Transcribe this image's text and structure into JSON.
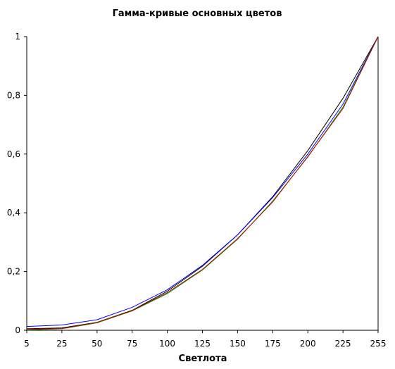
{
  "chart_data": {
    "type": "line",
    "title": "Гамма-кривые  основных цветов",
    "xlabel": "Светлота",
    "ylabel": "",
    "x": [
      5,
      25,
      50,
      75,
      100,
      125,
      150,
      175,
      200,
      225,
      255
    ],
    "x_tick_labels": [
      "5",
      "25",
      "50",
      "75",
      "100",
      "125",
      "150",
      "175",
      "200",
      "225",
      "255"
    ],
    "y_tick_labels": [
      "0",
      "0,2",
      "0,4",
      "0,6",
      "0,8",
      "1"
    ],
    "y_ticks": [
      0,
      0.2,
      0.4,
      0.6,
      0.8,
      1
    ],
    "ylim": [
      0,
      1
    ],
    "grid": false,
    "legend": "none",
    "series": [
      {
        "color": "#000000",
        "values": [
          0.005,
          0.008,
          0.027,
          0.068,
          0.133,
          0.218,
          0.325,
          0.455,
          0.612,
          0.79,
          1.0
        ]
      },
      {
        "color": "#0000ff",
        "values": [
          0.013,
          0.018,
          0.036,
          0.078,
          0.138,
          0.221,
          0.325,
          0.452,
          0.6,
          0.77,
          1.0
        ]
      },
      {
        "color": "#00a000",
        "values": [
          0.001,
          0.005,
          0.025,
          0.066,
          0.125,
          0.205,
          0.31,
          0.44,
          0.59,
          0.76,
          1.0
        ]
      },
      {
        "color": "#c00000",
        "values": [
          0.003,
          0.006,
          0.027,
          0.067,
          0.128,
          0.207,
          0.312,
          0.437,
          0.592,
          0.755,
          1.0
        ]
      }
    ]
  }
}
